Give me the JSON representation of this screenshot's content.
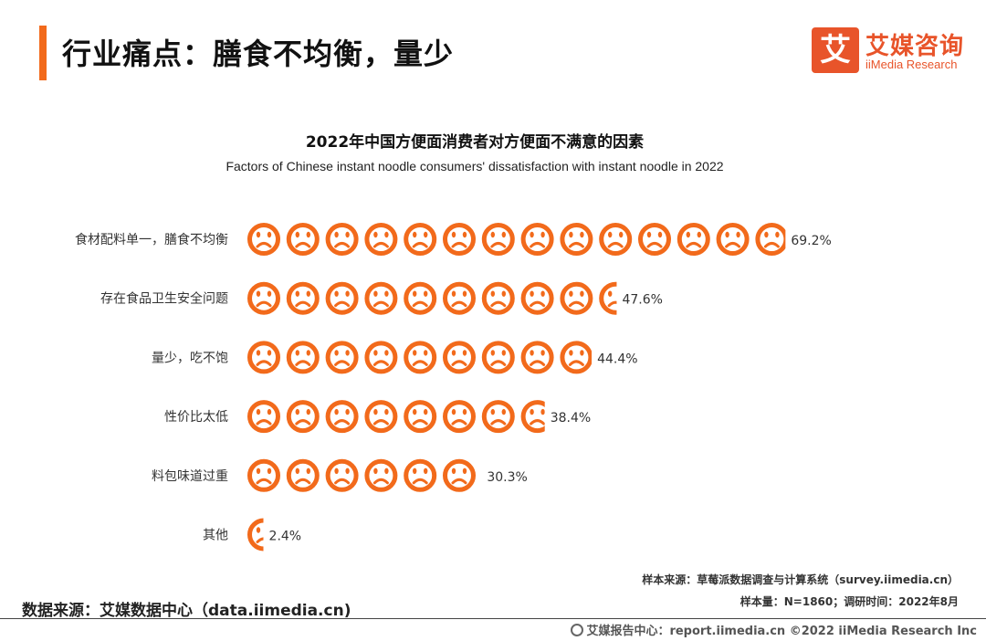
{
  "header": {
    "title": "行业痛点：膳食不均衡，量少"
  },
  "logo": {
    "mark": "艾",
    "name": "艾媒咨询",
    "sub": "iiMedia Research"
  },
  "chart_data": {
    "type": "bar",
    "title": "2022年中国方便面消费者对方便面不满意的因素",
    "subtitle": "Factors of Chinese instant noodle consumers' dissatisfaction with instant noodle in 2022",
    "categories": [
      "食材配料单一，膳食不均衡",
      "存在食品卫生安全问题",
      "量少，吃不饱",
      "性价比太低",
      "料包味道过重",
      "其他"
    ],
    "values": [
      69.2,
      47.6,
      44.4,
      38.4,
      30.3,
      2.4
    ],
    "value_labels": [
      "69.2%",
      "47.6%",
      "44.4%",
      "38.4%",
      "30.3%",
      "2.4%"
    ],
    "unit": "%",
    "mark_icon": "sad-face-icon",
    "icon_unit_value": 5,
    "color": "#f26a1b"
  },
  "notes": {
    "sample_source": "样本来源：草莓派数据调查与计算系统（survey.iimedia.cn）",
    "sample_size": "样本量：N=1860；调研时间：2022年8月",
    "data_source": "数据来源：艾媒数据中心（data.iimedia.cn)"
  },
  "footer": {
    "text": "艾媒报告中心：report.iimedia.cn   ©2022  iiMedia Research  Inc"
  }
}
